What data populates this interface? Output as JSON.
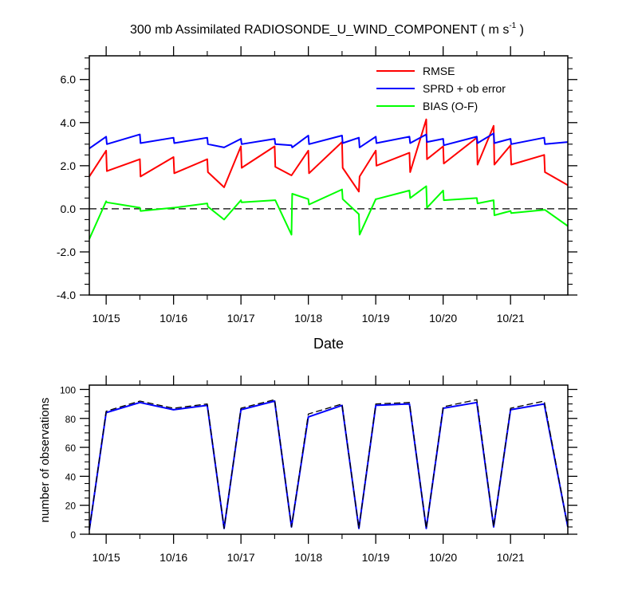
{
  "chart_data": [
    {
      "type": "line",
      "title_main": "300 mb Assimilated RADIOSONDE_U_WIND_COMPONENT ( m s",
      "title_sup": "-1",
      "title_end": " )",
      "xlabel": "Date",
      "ylabel": "",
      "xlim": [
        0,
        7.1
      ],
      "ylim": [
        -4,
        7.1
      ],
      "x_tick_values": [
        0.25,
        1.25,
        2.25,
        3.25,
        4.25,
        5.25,
        6.25
      ],
      "x_tick_labels": [
        "10/15",
        "10/16",
        "10/17",
        "10/18",
        "10/19",
        "10/20",
        "10/21"
      ],
      "y_ticks": [
        -4,
        -2,
        0,
        2,
        4,
        6
      ],
      "y_tick_labels": [
        "-4.0",
        "-2.0",
        "0.0",
        "2.0",
        "4.0",
        "6.0"
      ],
      "zero_line": true,
      "legend_position": "top-right",
      "series": [
        {
          "name": "RMSE",
          "color": "#ff0000",
          "x": [
            0,
            0.25,
            0.26,
            0.75,
            0.76,
            1.25,
            1.26,
            1.75,
            1.76,
            2.0,
            2.25,
            2.26,
            2.75,
            2.76,
            3.0,
            3.25,
            3.26,
            3.75,
            3.76,
            4.0,
            4.01,
            4.25,
            4.26,
            4.75,
            4.76,
            5.0,
            5.01,
            5.25,
            5.26,
            5.75,
            5.76,
            6.0,
            6.01,
            6.25,
            6.26,
            6.75,
            6.76,
            7.1
          ],
          "y": [
            1.5,
            2.7,
            1.75,
            2.3,
            1.5,
            2.4,
            1.65,
            2.3,
            1.7,
            1.0,
            2.9,
            1.9,
            2.9,
            1.95,
            1.55,
            2.7,
            1.65,
            3.1,
            1.9,
            0.8,
            1.5,
            2.7,
            2.0,
            2.6,
            1.7,
            4.15,
            2.3,
            2.9,
            2.1,
            3.3,
            2.05,
            3.85,
            2.05,
            2.95,
            2.05,
            2.5,
            1.7,
            1.1
          ]
        },
        {
          "name": "SPRD + ob error",
          "color": "#0000ff",
          "x": [
            0,
            0.25,
            0.26,
            0.75,
            0.76,
            1.25,
            1.26,
            1.75,
            1.76,
            2.0,
            2.25,
            2.26,
            2.75,
            2.76,
            3.0,
            3.01,
            3.25,
            3.26,
            3.75,
            3.76,
            4.0,
            4.01,
            4.25,
            4.26,
            4.75,
            4.76,
            5.0,
            5.01,
            5.25,
            5.26,
            5.75,
            5.76,
            6.0,
            6.01,
            6.25,
            6.26,
            6.75,
            6.76,
            7.1
          ],
          "y": [
            2.8,
            3.35,
            3.0,
            3.45,
            3.05,
            3.3,
            3.05,
            3.3,
            3.0,
            2.85,
            3.25,
            3.0,
            3.25,
            3.0,
            2.95,
            2.85,
            3.4,
            3.0,
            3.4,
            3.05,
            3.3,
            2.85,
            3.35,
            3.05,
            3.35,
            3.05,
            3.45,
            3.1,
            3.25,
            2.95,
            3.35,
            3.05,
            3.5,
            3.05,
            3.25,
            3.0,
            3.3,
            3.0,
            3.1
          ]
        },
        {
          "name": "BIAS (O-F)",
          "color": "#00ff00",
          "x": [
            0,
            0.25,
            0.26,
            0.75,
            0.76,
            1.25,
            1.26,
            1.75,
            1.76,
            2.0,
            2.25,
            2.26,
            2.75,
            2.76,
            3.0,
            3.01,
            3.25,
            3.26,
            3.75,
            3.76,
            4.0,
            4.01,
            4.25,
            4.26,
            4.75,
            4.76,
            5.0,
            5.01,
            5.25,
            5.26,
            5.75,
            5.76,
            6.0,
            6.01,
            6.25,
            6.26,
            6.75,
            6.76,
            7.1
          ],
          "y": [
            -1.4,
            0.35,
            0.3,
            0.05,
            -0.1,
            0.05,
            0.05,
            0.25,
            0.1,
            -0.5,
            0.4,
            0.3,
            0.4,
            0.4,
            -1.2,
            0.7,
            0.45,
            0.2,
            0.9,
            0.45,
            -0.25,
            -1.2,
            0.45,
            0.45,
            0.85,
            0.5,
            1.05,
            0.05,
            0.85,
            0.4,
            0.5,
            0.25,
            0.4,
            -0.3,
            -0.1,
            -0.2,
            -0.05,
            -0.05,
            -0.8
          ]
        }
      ]
    },
    {
      "type": "line",
      "title": "",
      "xlabel": "",
      "ylabel": "number of observations",
      "xlim": [
        0,
        7.1
      ],
      "ylim": [
        0,
        103
      ],
      "x_tick_values": [
        0.25,
        1.25,
        2.25,
        3.25,
        4.25,
        5.25,
        6.25
      ],
      "x_tick_labels": [
        "10/15",
        "10/16",
        "10/17",
        "10/18",
        "10/19",
        "10/20",
        "10/21"
      ],
      "y_ticks": [
        0,
        20,
        40,
        60,
        80,
        100
      ],
      "y_tick_labels": [
        "0",
        "20",
        "40",
        "60",
        "80",
        "100"
      ],
      "series": [
        {
          "color": "#0000ff",
          "x": [
            0,
            0.25,
            0.75,
            1.25,
            1.75,
            2.0,
            2.25,
            2.75,
            3.0,
            3.25,
            3.75,
            4.0,
            4.25,
            4.75,
            5.0,
            5.25,
            5.75,
            6.0,
            6.25,
            6.75,
            7.1
          ],
          "y": [
            3,
            84,
            91,
            86,
            89,
            4,
            86,
            92,
            5,
            81,
            89,
            4,
            89,
            90,
            4,
            87,
            91,
            5,
            86,
            90,
            5
          ]
        },
        {
          "color": "#000000",
          "dashed": true,
          "x": [
            0,
            0.25,
            0.75,
            1.25,
            1.75,
            2.0,
            2.25,
            2.75,
            3.0,
            3.25,
            3.75,
            4.0,
            4.25,
            4.75,
            5.0,
            5.25,
            5.75,
            6.0,
            6.25,
            6.75,
            7.1
          ],
          "y": [
            3,
            85,
            92,
            87,
            90,
            4,
            87,
            93,
            5,
            83,
            90,
            4,
            90,
            91,
            4,
            88,
            93,
            5,
            87,
            92,
            5
          ]
        }
      ]
    }
  ]
}
